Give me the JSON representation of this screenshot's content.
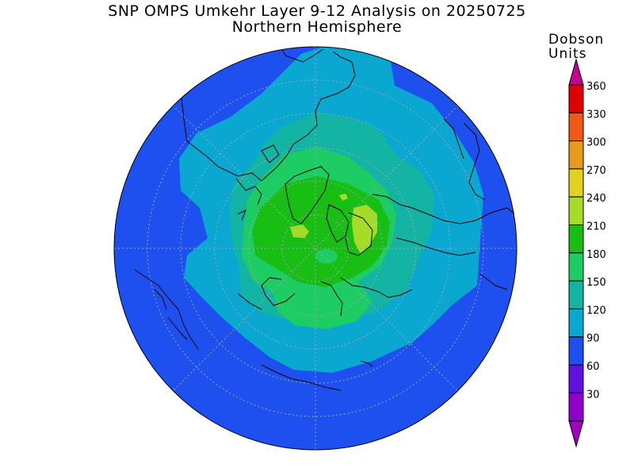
{
  "title": "SNP OMPS Umkehr Layer 9-12 Analysis on 20250725",
  "subtitle": "Northern Hemisphere",
  "colorbar": {
    "units_line1": "Dobson",
    "units_line2": "Units",
    "levels": [
      {
        "value": "360",
        "color": "#e00000"
      },
      {
        "value": "330",
        "color": "#f05a14"
      },
      {
        "value": "300",
        "color": "#e89a18"
      },
      {
        "value": "270",
        "color": "#e0d21e"
      },
      {
        "value": "240",
        "color": "#a6dc28"
      },
      {
        "value": "210",
        "color": "#18be14"
      },
      {
        "value": "180",
        "color": "#1ecc64"
      },
      {
        "value": "150",
        "color": "#14b4a4"
      },
      {
        "value": "120",
        "color": "#0aa8d0"
      },
      {
        "value": "90",
        "color": "#1e50f0"
      },
      {
        "value": "60",
        "color": "#6010e0"
      },
      {
        "value": "30",
        "color": "#9000c8"
      }
    ],
    "top_arrow_color": "#c80090",
    "bottom_arrow_color": "#a000c0"
  }
}
